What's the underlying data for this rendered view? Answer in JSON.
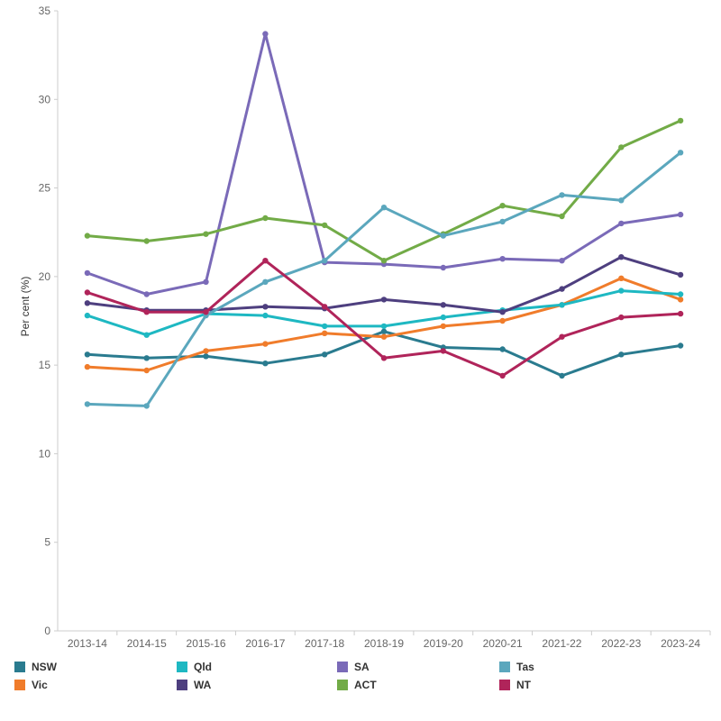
{
  "chart_data": {
    "type": "line",
    "title": "",
    "xlabel": "",
    "ylabel": "Per cent (%)",
    "ylim": [
      0,
      35
    ],
    "yticks": [
      0,
      5,
      10,
      15,
      20,
      25,
      30,
      35
    ],
    "categories": [
      "2013-14",
      "2014-15",
      "2015-16",
      "2016-17",
      "2017-18",
      "2018-19",
      "2019-20",
      "2020-21",
      "2021-22",
      "2022-23",
      "2023-24"
    ],
    "legend_position": "bottom",
    "series": [
      {
        "name": "NSW",
        "color": "#2a7b8f",
        "values": [
          15.6,
          15.4,
          15.5,
          15.1,
          15.6,
          16.9,
          16.0,
          15.9,
          14.4,
          15.6,
          16.1
        ]
      },
      {
        "name": "Vic",
        "color": "#f07c2b",
        "values": [
          14.9,
          14.7,
          15.8,
          16.2,
          16.8,
          16.6,
          17.2,
          17.5,
          18.4,
          19.9,
          18.7
        ]
      },
      {
        "name": "Qld",
        "color": "#1eb8c2",
        "values": [
          17.8,
          16.7,
          17.9,
          17.8,
          17.2,
          17.2,
          17.7,
          18.1,
          18.4,
          19.2,
          19.0
        ]
      },
      {
        "name": "WA",
        "color": "#4e3f7f",
        "values": [
          18.5,
          18.1,
          18.1,
          18.3,
          18.2,
          18.7,
          18.4,
          18.0,
          19.3,
          21.1,
          20.1
        ]
      },
      {
        "name": "SA",
        "color": "#7a6ab8",
        "values": [
          20.2,
          19.0,
          19.7,
          33.7,
          20.8,
          20.7,
          20.5,
          21.0,
          20.9,
          23.0,
          23.5
        ]
      },
      {
        "name": "ACT",
        "color": "#72ab47",
        "values": [
          22.3,
          22.0,
          22.4,
          23.3,
          22.9,
          20.9,
          22.4,
          24.0,
          23.4,
          27.3,
          28.8
        ]
      },
      {
        "name": "Tas",
        "color": "#5ba7bd",
        "values": [
          12.8,
          12.7,
          17.8,
          19.7,
          20.9,
          23.9,
          22.3,
          23.1,
          24.6,
          24.3,
          27.0
        ]
      },
      {
        "name": "NT",
        "color": "#b0245a",
        "values": [
          19.1,
          18.0,
          18.0,
          20.9,
          18.3,
          15.4,
          15.8,
          14.4,
          16.6,
          17.7,
          17.9
        ]
      }
    ]
  },
  "legend": {
    "items": [
      {
        "name": "NSW",
        "color": "#2a7b8f"
      },
      {
        "name": "Qld",
        "color": "#1eb8c2"
      },
      {
        "name": "SA",
        "color": "#7a6ab8"
      },
      {
        "name": "Tas",
        "color": "#5ba7bd"
      },
      {
        "name": "Vic",
        "color": "#f07c2b"
      },
      {
        "name": "WA",
        "color": "#4e3f7f"
      },
      {
        "name": "ACT",
        "color": "#72ab47"
      },
      {
        "name": "NT",
        "color": "#b0245a"
      }
    ]
  }
}
